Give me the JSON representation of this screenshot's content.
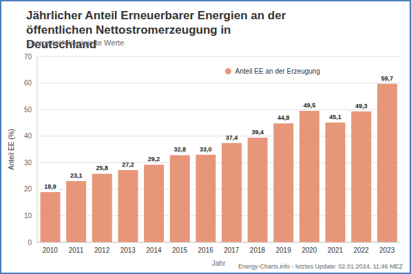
{
  "chart_data": {
    "type": "bar",
    "title": "Jährlicher Anteil Erneuerbarer Energien an der öffentlichen Nettostromerzeugung in Deutschland",
    "subtitle": "Energetisch korrigierte Werte",
    "source": "Energy-Charts.info - letztes Update: 02.01.2024, 11:46 MEZ",
    "x_label": "Jahr",
    "y_label": "Anteil EE (%)",
    "categories": [
      "2010",
      "2011",
      "2012",
      "2013",
      "2014",
      "2015",
      "2016",
      "2017",
      "2018",
      "2019",
      "2020",
      "2021",
      "2022",
      "2023"
    ],
    "series": [
      {
        "name": "Anteil EE an der Erzeugung",
        "color": "#e8967a",
        "values": [
          18.9,
          23.1,
          25.8,
          27.2,
          29.2,
          32.8,
          33.0,
          37.4,
          39.4,
          44.8,
          49.5,
          45.1,
          49.3,
          59.7
        ],
        "value_labels": [
          "18,9",
          "23,1",
          "25,8",
          "27,2",
          "29,2",
          "32,8",
          "33,0",
          "37,4",
          "39,4",
          "44,8",
          "49,5",
          "45,1",
          "49,3",
          "59,7"
        ]
      }
    ],
    "ylim": [
      0,
      70
    ],
    "yticks": [
      0,
      10,
      20,
      30,
      40,
      50,
      60,
      70
    ],
    "grid": true,
    "data_labels": true,
    "legend": "top-right"
  }
}
